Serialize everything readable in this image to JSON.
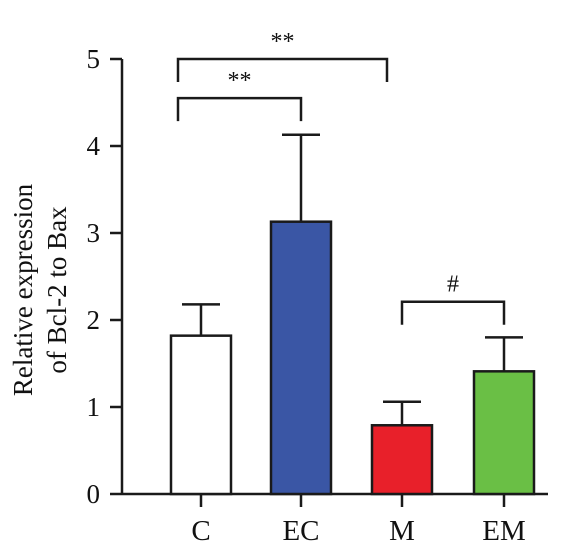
{
  "chart_data": {
    "type": "bar",
    "categories": [
      "C",
      "EC",
      "M",
      "EM"
    ],
    "values": [
      1.82,
      3.13,
      0.79,
      1.41
    ],
    "errors": [
      0.36,
      1.0,
      0.27,
      0.39
    ],
    "bar_colors": [
      "#ffffff",
      "#3a56a5",
      "#e8202a",
      "#6abf45"
    ],
    "ylabel_lines": [
      "Relative expression",
      "of Bcl-2 to Bax"
    ],
    "yticks": [
      "0",
      "1",
      "2",
      "3",
      "4",
      "5"
    ],
    "ylim": [
      0,
      5
    ],
    "significance": [
      {
        "from": "C",
        "to": "M",
        "label": "**",
        "level": 5.0
      },
      {
        "from": "C",
        "to": "EC",
        "label": "**",
        "level": 4.55
      },
      {
        "from": "M",
        "to": "EM",
        "label": "#",
        "level": 2.21
      }
    ],
    "grid": false,
    "legend": "none"
  }
}
